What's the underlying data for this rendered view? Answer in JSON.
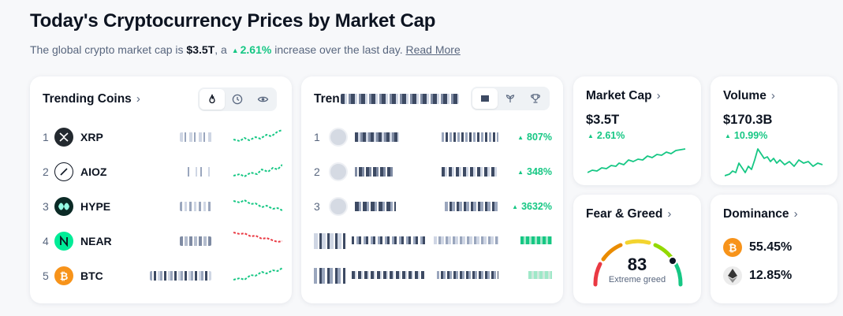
{
  "header": {
    "title": "Today's Cryptocurrency Prices by Market Cap",
    "sub_prefix": "The global crypto market cap is ",
    "sub_cap": "$3.5T",
    "sub_mid": ", a ",
    "sub_change": "2.61%",
    "sub_suffix": " increase over the last day.",
    "read_more": "Read More"
  },
  "trending_coins": {
    "title": "Trending Coins",
    "tabs": [
      "flame-icon",
      "clock-icon",
      "eye-icon"
    ],
    "active_tab": 0,
    "items": [
      {
        "rank": "1",
        "name": "XRP",
        "icon": "xrp-icon",
        "color": "#23292f"
      },
      {
        "rank": "2",
        "name": "AIOZ",
        "icon": "aioz-icon",
        "color": "#ffffff"
      },
      {
        "rank": "3",
        "name": "HYPE",
        "icon": "hype-icon",
        "color": "#0b2a26"
      },
      {
        "rank": "4",
        "name": "NEAR",
        "icon": "near-icon",
        "color": "#00ec97"
      },
      {
        "rank": "5",
        "name": "BTC",
        "icon": "btc-icon",
        "color": "#f7931a"
      }
    ]
  },
  "trending_onchain": {
    "title": "Tren",
    "tabs": [
      "grid-icon",
      "leaf-icon",
      "trophy-icon"
    ],
    "items": [
      {
        "rank": "1",
        "change": "807%"
      },
      {
        "rank": "2",
        "change": "348%"
      },
      {
        "rank": "3",
        "change": "3632%"
      },
      {
        "rank": "",
        "change": ""
      },
      {
        "rank": "",
        "change": ""
      }
    ]
  },
  "market_cap": {
    "title": "Market Cap",
    "value": "$3.5T",
    "change": "2.61%"
  },
  "volume": {
    "title": "Volume",
    "value": "$170.3B",
    "change": "10.99%"
  },
  "fear_greed": {
    "title": "Fear & Greed",
    "value": "83",
    "label": "Extreme greed",
    "level": 0.83
  },
  "dominance": {
    "title": "Dominance",
    "items": [
      {
        "icon": "btc-icon",
        "value": "55.45%",
        "color": "#f7931a"
      },
      {
        "icon": "eth-icon",
        "value": "12.85%",
        "color": "#ececec"
      }
    ]
  },
  "colors": {
    "up": "#16c784",
    "down": "#ea3943",
    "muted": "#58667e"
  }
}
